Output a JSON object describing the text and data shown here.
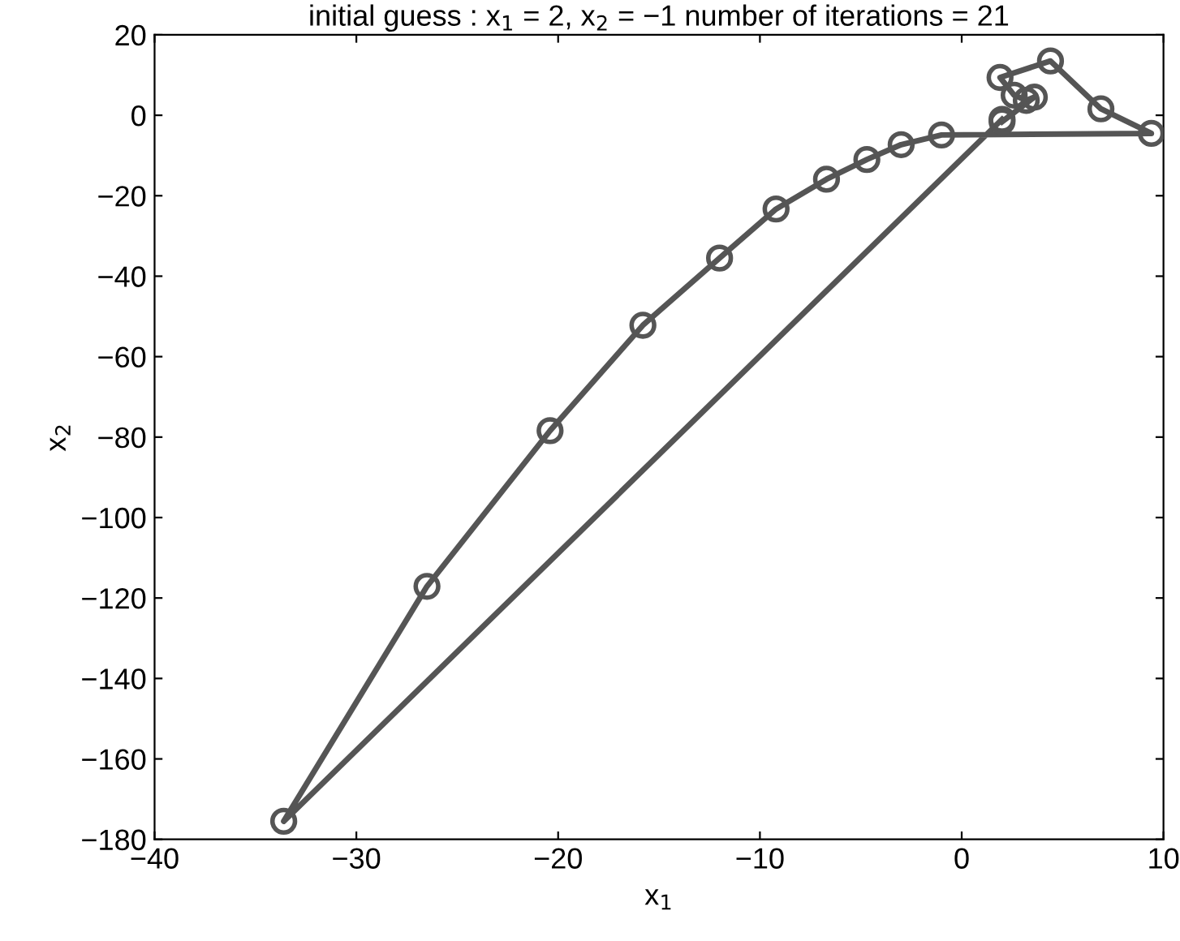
{
  "chart_data": {
    "type": "line",
    "title": "initial guess : x$_{1}$ = 2, x$_{2}$ = −1 number of iterations = 21",
    "xlabel": "x$_{1}$",
    "ylabel": "x$_{2}$",
    "series": [
      {
        "color": "#555555",
        "x": [
          2,
          -33.6,
          -26.5,
          -20.4,
          -15.8,
          -12.0,
          -9.2,
          -6.7,
          -4.7,
          -3.0,
          -1.0,
          9.4,
          6.9,
          4.4,
          1.9,
          2.6,
          3.2,
          3.6,
          2.0
        ],
        "values": [
          -1,
          -175.5,
          -117.1,
          -78.4,
          -52.2,
          -35.5,
          -23.3,
          -15.9,
          -11,
          -7.3,
          -4.9,
          -4.5,
          1.6,
          13.5,
          9.4,
          5,
          3.7,
          4.5,
          -1.6
        ]
      }
    ],
    "marker": "circle",
    "line_style": "solid",
    "grid": false,
    "legend": false,
    "xlim": [
      -40,
      10
    ],
    "ylim": [
      -180,
      20
    ],
    "xticks": [
      {
        "value": -40,
        "label": "−40"
      },
      {
        "value": -30,
        "label": "−30"
      },
      {
        "value": -20,
        "label": "−20"
      },
      {
        "value": -10,
        "label": "−10"
      },
      0,
      10
    ],
    "yticks": [
      {
        "value": -180,
        "label": "−180"
      },
      {
        "value": -160,
        "label": "−160"
      },
      {
        "value": -140,
        "label": "−140"
      },
      {
        "value": -120,
        "label": "−120"
      },
      {
        "value": -100,
        "label": "−100"
      },
      {
        "value": -80,
        "label": "−80"
      },
      {
        "value": -60,
        "label": "−60"
      },
      {
        "value": -40,
        "label": "−40"
      },
      {
        "value": -20,
        "label": "−20"
      },
      0,
      20
    ]
  }
}
